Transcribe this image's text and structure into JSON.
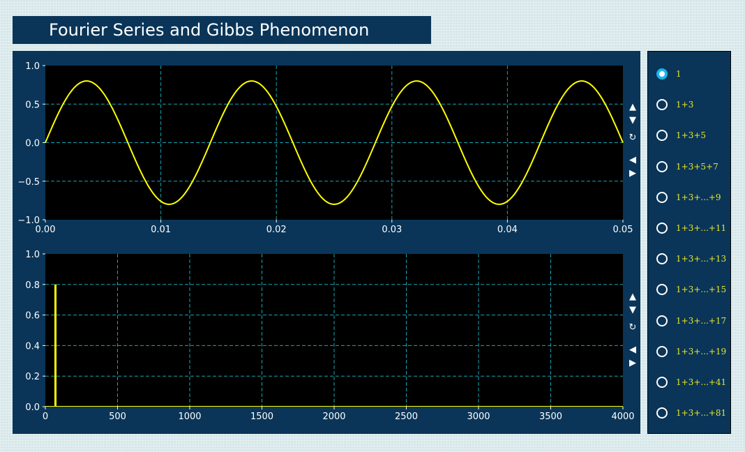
{
  "title": "Fourier Series and Gibbs Phenomenon",
  "colors": {
    "panel": "#0a3558",
    "plot_bg": "#000000",
    "grid": "#17a6b5",
    "trace": "#ffff00",
    "radio_checked": "#19b6ea",
    "radio_label": "#e8e62a"
  },
  "radio": {
    "selected_index": 0,
    "options": [
      "1",
      "1+3",
      "1+3+5",
      "1+3+5+7",
      "1+3+...+9",
      "1+3+...+11",
      "1+3+...+13",
      "1+3+...+15",
      "1+3+...+17",
      "1+3+...+19",
      "1+3+...+41",
      "1+3+...+81"
    ]
  },
  "nav_buttons": {
    "up": "▲",
    "down": "▼",
    "reset": "↻",
    "left": "◀",
    "right": "▶"
  },
  "chart_data": [
    {
      "type": "line",
      "title": "",
      "xlabel": "",
      "ylabel": "",
      "xlim": [
        0.0,
        0.05
      ],
      "ylim": [
        -1.0,
        1.0
      ],
      "xticks": [
        "0.00",
        "0.01",
        "0.02",
        "0.03",
        "0.04",
        "0.05"
      ],
      "yticks": [
        "1.0",
        "0.5",
        "0.0",
        "−0.5",
        "−1.0"
      ],
      "grid": true,
      "series": [
        {
          "amplitude": 0.8,
          "frequency_hz": 70,
          "color": "#ffff00"
        }
      ]
    },
    {
      "type": "bar",
      "title": "",
      "xlabel": "",
      "ylabel": "",
      "xlim": [
        0,
        4000
      ],
      "ylim": [
        0.0,
        1.0
      ],
      "xticks": [
        "0",
        "500",
        "1000",
        "1500",
        "2000",
        "2500",
        "3000",
        "3500",
        "4000"
      ],
      "yticks": [
        "1.0",
        "0.8",
        "0.6",
        "0.4",
        "0.2",
        "0.0"
      ],
      "grid": true,
      "stems": [
        {
          "x": 70,
          "y": 0.8
        }
      ]
    }
  ]
}
